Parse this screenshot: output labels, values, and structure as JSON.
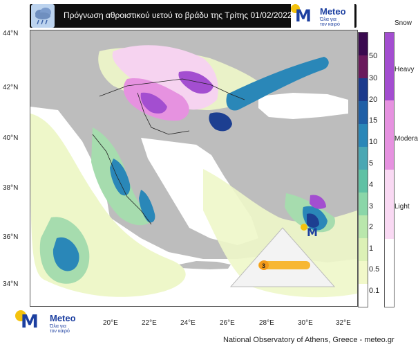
{
  "header": {
    "title": "Πρόγνωση αθροιστικού υετού το βράδυ της Τρίτης 01/02/2022",
    "weather_icon": "rain-cloud-icon"
  },
  "logo": {
    "name": "Meteo",
    "tagline_line1": "Όλα για",
    "tagline_line2": "τον καιρό"
  },
  "map": {
    "lat_ticks": [
      "44°N",
      "42°N",
      "40°N",
      "38°N",
      "36°N",
      "34°N"
    ],
    "lon_ticks": [
      "20°E",
      "22°E",
      "24°E",
      "26°E",
      "28°E",
      "30°E",
      "32°E"
    ],
    "colors": {
      "sea": "#ffffff",
      "land": "#bdbdbd",
      "light_rain": "#eef7c9",
      "moderate_rain": "#a6dcae",
      "heavy_rain": "#2a87b8",
      "very_heavy_rain": "#1d3f91",
      "snow_light": "#f6d3f0",
      "snow_moderate": "#e692e0",
      "snow_heavy": "#a34ed0"
    }
  },
  "colorbar": {
    "rain_levels": [
      {
        "label": "50",
        "color": "#3a0a4f"
      },
      {
        "label": "30",
        "color": "#6a1a5c"
      },
      {
        "label": "20",
        "color": "#1c3a8c"
      },
      {
        "label": "15",
        "color": "#1f5fa6"
      },
      {
        "label": "10",
        "color": "#2a87b8"
      },
      {
        "label": "5",
        "color": "#4aa7b3"
      },
      {
        "label": "4",
        "color": "#5fc1a4"
      },
      {
        "label": "3",
        "color": "#8ad6a8"
      },
      {
        "label": "2",
        "color": "#b9e7ac"
      },
      {
        "label": "1",
        "color": "#dcf1b6"
      },
      {
        "label": "0.5",
        "color": "#f1f8c9"
      },
      {
        "label": "0.1",
        "color": "#ffffff"
      }
    ],
    "snow_title": "Snow",
    "snow_levels": [
      {
        "label": "Heavy",
        "color": "#a34ed0"
      },
      {
        "label": "Moderate",
        "color": "#e692e0"
      },
      {
        "label": "Light",
        "color": "#f9d9f3"
      }
    ]
  },
  "footer": {
    "credit": "National Observatory of Athens, Greece - meteo.gr"
  }
}
